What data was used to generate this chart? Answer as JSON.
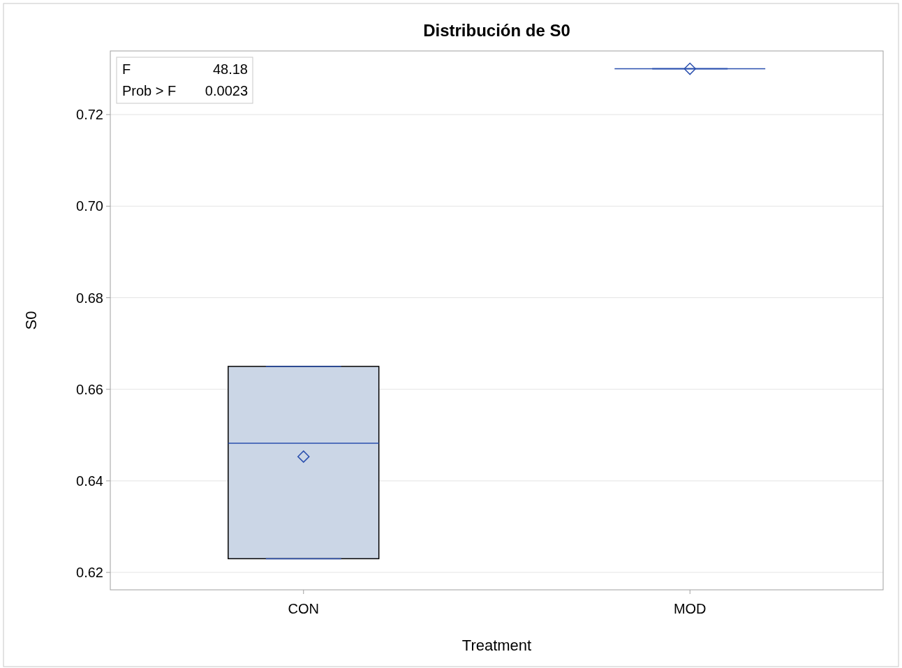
{
  "chart_data": {
    "type": "box",
    "title": "Distribución de S0",
    "xlabel": "Treatment",
    "ylabel": "S0",
    "categories": [
      "CON",
      "MOD"
    ],
    "boxes": [
      {
        "low": 0.623,
        "q1": 0.623,
        "median": 0.6482,
        "q3": 0.665,
        "high": 0.665,
        "mean": 0.6453
      },
      {
        "low": 0.73,
        "q1": 0.73,
        "median": 0.73,
        "q3": 0.73,
        "high": 0.73,
        "mean": 0.73
      }
    ],
    "colors": [
      "#cbd6e6",
      "#2a4fae"
    ],
    "ylim": [
      0.6162,
      0.7339
    ],
    "yticks": [
      {
        "value": 0.62,
        "label": "0.62"
      },
      {
        "value": 0.64,
        "label": "0.64"
      },
      {
        "value": 0.66,
        "label": "0.66"
      },
      {
        "value": 0.68,
        "label": "0.68"
      },
      {
        "value": 0.7,
        "label": "0.70"
      },
      {
        "value": 0.72,
        "label": "0.72"
      }
    ],
    "grid": "y",
    "marker": "diamond",
    "annotations": [
      "F",
      "48.18",
      "Prob > F",
      "0.0023"
    ]
  }
}
